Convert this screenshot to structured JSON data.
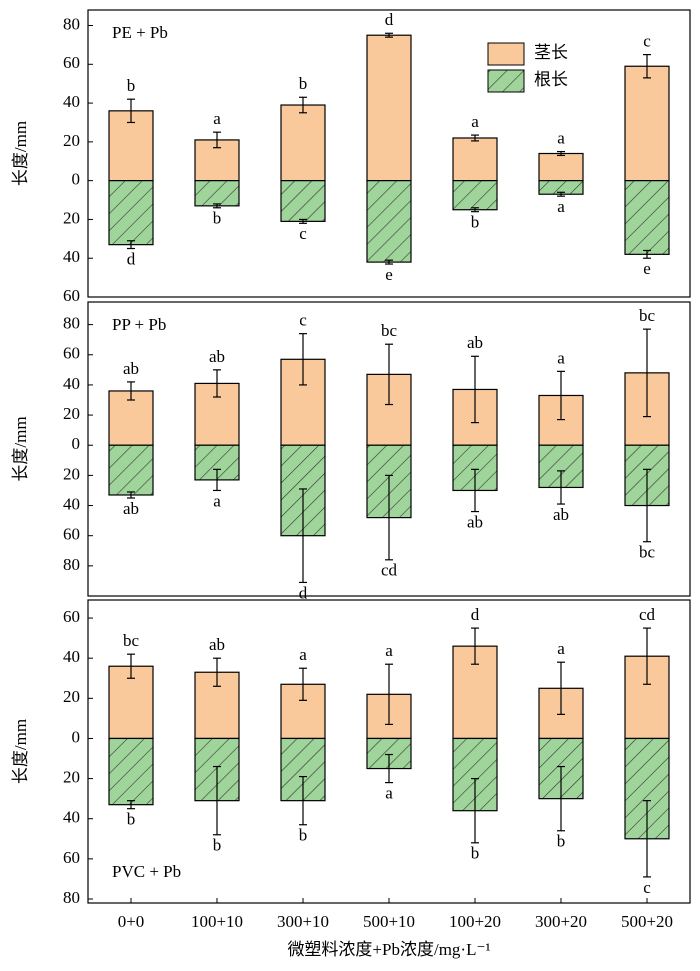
{
  "chart_data": [
    {
      "type": "bar",
      "title": "PE + Pb",
      "title_corner": "upper left",
      "ylabel": "长度/mm",
      "ylim": [
        -60,
        88
      ],
      "yticks": [
        80,
        60,
        40,
        20,
        0,
        {
          "value": -20,
          "label": "20"
        },
        {
          "value": -40,
          "label": "40"
        },
        {
          "value": -60,
          "label": "60"
        }
      ],
      "legend": "upper right",
      "series": [
        {
          "name": "茎长",
          "color": "#f9c89b",
          "values": [
            36,
            21,
            39,
            75,
            22,
            14,
            59
          ],
          "errors": [
            6,
            4,
            4,
            1,
            1.5,
            1,
            6
          ],
          "letters": [
            "b",
            "a",
            "b",
            "d",
            "a",
            "a",
            "c"
          ]
        },
        {
          "name": "根长",
          "color": "#9fd49a",
          "hatch": true,
          "values": [
            -33,
            -13,
            -21,
            -42,
            -15,
            -7,
            -38
          ],
          "errors": [
            2,
            1,
            1,
            1,
            1,
            1,
            2
          ],
          "letters": [
            "d",
            "b",
            "c",
            "e",
            "b",
            "a",
            "e"
          ]
        }
      ]
    },
    {
      "type": "bar",
      "title": "PP + Pb",
      "title_corner": "upper left",
      "ylabel": "长度/mm",
      "ylim": [
        -100,
        95
      ],
      "yticks": [
        80,
        60,
        40,
        20,
        0,
        {
          "value": -20,
          "label": "20"
        },
        {
          "value": -40,
          "label": "40"
        },
        {
          "value": -60,
          "label": "60"
        },
        {
          "value": -80,
          "label": "80"
        }
      ],
      "series": [
        {
          "name": "茎长",
          "color": "#f9c89b",
          "values": [
            36,
            41,
            57,
            47,
            37,
            33,
            48
          ],
          "errors": [
            6,
            9,
            17,
            20,
            22,
            16,
            29
          ],
          "letters": [
            "ab",
            "ab",
            "c",
            "bc",
            "ab",
            "a",
            "bc"
          ]
        },
        {
          "name": "根长",
          "color": "#9fd49a",
          "hatch": true,
          "values": [
            -33,
            -23,
            -60,
            -48,
            -30,
            -28,
            -40
          ],
          "errors": [
            2,
            7,
            31,
            28,
            14,
            11,
            24
          ],
          "letters": [
            "ab",
            "a",
            "d",
            "cd",
            "ab",
            "ab",
            "bc"
          ]
        }
      ]
    },
    {
      "type": "bar",
      "title": "PVC + Pb",
      "title_corner": "lower left",
      "ylabel": "长度/mm",
      "xlabel": "微塑料浓度+Pb浓度/mg·L⁻¹",
      "categories": [
        "0+0",
        "100+10",
        "300+10",
        "500+10",
        "100+20",
        "300+20",
        "500+20"
      ],
      "ylim": [
        -82,
        69
      ],
      "yticks": [
        60,
        40,
        20,
        0,
        {
          "value": -20,
          "label": "20"
        },
        {
          "value": -40,
          "label": "40"
        },
        {
          "value": -60,
          "label": "60"
        },
        {
          "value": -80,
          "label": "80"
        }
      ],
      "series": [
        {
          "name": "茎长",
          "color": "#f9c89b",
          "values": [
            36,
            33,
            27,
            22,
            46,
            25,
            41
          ],
          "errors": [
            6,
            7,
            8,
            15,
            9,
            13,
            14
          ],
          "letters": [
            "bc",
            "ab",
            "a",
            "a",
            "d",
            "a",
            "cd"
          ]
        },
        {
          "name": "根长",
          "color": "#9fd49a",
          "hatch": true,
          "values": [
            -33,
            -31,
            -31,
            -15,
            -36,
            -30,
            -50
          ],
          "errors": [
            2,
            17,
            12,
            7,
            16,
            16,
            19
          ],
          "letters": [
            "b",
            "b",
            "b",
            "a",
            "b",
            "b",
            "c"
          ]
        }
      ]
    }
  ]
}
